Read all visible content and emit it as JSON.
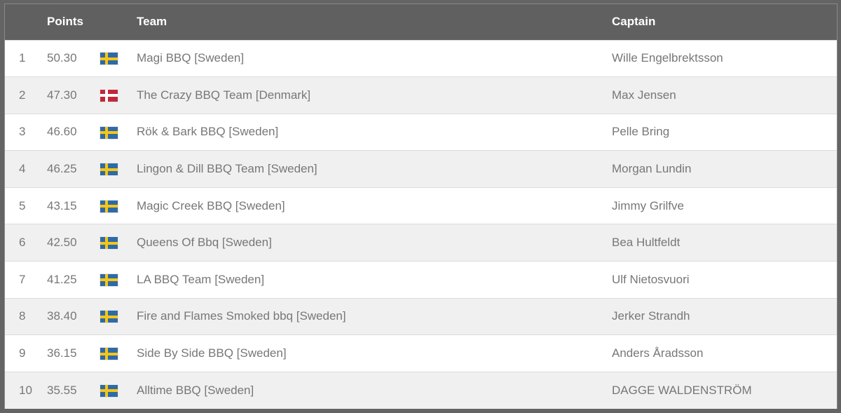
{
  "table": {
    "headers": {
      "rank": "",
      "points": "Points",
      "flag": "",
      "team": "Team",
      "captain": "Captain"
    },
    "rows": [
      {
        "rank": "1",
        "points": "50.30",
        "flag": "sweden",
        "team": "Magi BBQ [Sweden]",
        "captain": "Wille Engelbrektsson"
      },
      {
        "rank": "2",
        "points": "47.30",
        "flag": "denmark",
        "team": "The Crazy BBQ Team [Denmark]",
        "captain": "Max Jensen"
      },
      {
        "rank": "3",
        "points": "46.60",
        "flag": "sweden",
        "team": "Rök & Bark BBQ [Sweden]",
        "captain": "Pelle Bring"
      },
      {
        "rank": "4",
        "points": "46.25",
        "flag": "sweden",
        "team": "Lingon & Dill BBQ Team [Sweden]",
        "captain": "Morgan Lundin"
      },
      {
        "rank": "5",
        "points": "43.15",
        "flag": "sweden",
        "team": "Magic Creek BBQ [Sweden]",
        "captain": "Jimmy Grilfve"
      },
      {
        "rank": "6",
        "points": "42.50",
        "flag": "sweden",
        "team": "Queens Of Bbq [Sweden]",
        "captain": "Bea Hultfeldt"
      },
      {
        "rank": "7",
        "points": "41.25",
        "flag": "sweden",
        "team": "LA BBQ Team [Sweden]",
        "captain": "Ulf Nietosvuori"
      },
      {
        "rank": "8",
        "points": "38.40",
        "flag": "sweden",
        "team": "Fire and Flames Smoked bbq [Sweden]",
        "captain": "Jerker Strandh"
      },
      {
        "rank": "9",
        "points": "36.15",
        "flag": "sweden",
        "team": "Side By Side BBQ [Sweden]",
        "captain": "Anders Åradsson"
      },
      {
        "rank": "10",
        "points": "35.55",
        "flag": "sweden",
        "team": "Alltime BBQ [Sweden]",
        "captain": "DAGGE WALDENSTRÖM"
      }
    ]
  },
  "colors": {
    "header_bg": "#606060",
    "sweden_blue": "#2e6aa6",
    "sweden_yellow": "#f5c518",
    "denmark_red": "#c0293b",
    "denmark_white": "#ffffff"
  }
}
